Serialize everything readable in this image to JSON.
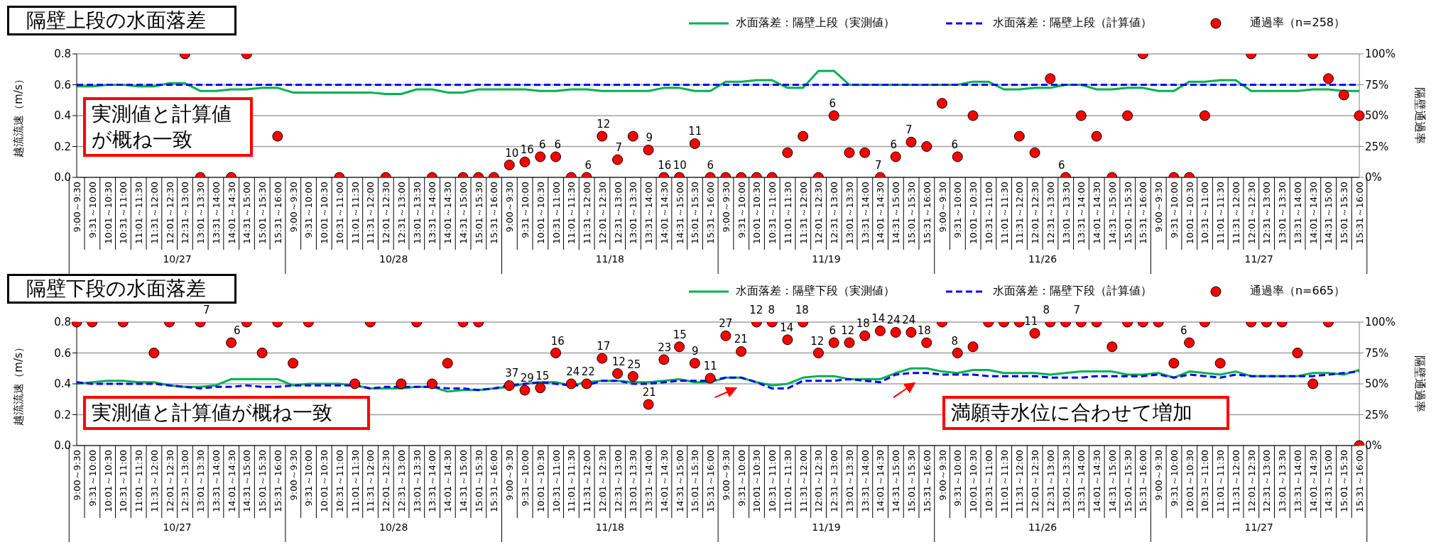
{
  "chart_data": [
    {
      "type": "line",
      "title": "隔壁上段の水面落差",
      "ylabel": "越流流速（m/s）",
      "y2label": "隔壁通過率",
      "legend": "top right",
      "grid": "y",
      "categories": [
        "9:00～9:30",
        "9:31～10:00",
        "10:01～10:30",
        "10:31～11:00",
        "11:01～11:30",
        "11:31～12:00",
        "12:01～12:30",
        "12:31～13:00",
        "13:01～13:30",
        "13:31～14:00",
        "14:01～14:30",
        "14:31～15:00",
        "15:01～15:30",
        "15:31～16:00",
        "9:00～9:30",
        "9:31～10:00",
        "10:01～10:30",
        "10:31～11:00",
        "11:01～11:30",
        "11:31～12:00",
        "12:01～12:30",
        "12:31～13:00",
        "13:01～13:30",
        "13:31～14:00",
        "14:01～14:30",
        "14:31～15:00",
        "15:01～15:30",
        "15:31～16:00",
        "9:00～9:30",
        "9:31～10:00",
        "10:01～10:30",
        "10:31～11:00",
        "11:01～11:30",
        "11:31～12:00",
        "12:01～12:30",
        "12:31～13:00",
        "13:01～13:30",
        "13:31～14:00",
        "14:01～14:30",
        "14:31～15:00",
        "15:01～15:30",
        "15:31～16:00",
        "9:00～9:30",
        "9:31～10:00",
        "10:01～10:30",
        "10:31～11:00",
        "11:01～11:30",
        "11:31～12:00",
        "12:01～12:30",
        "12:31～13:00",
        "13:01～13:30",
        "13:31～14:00",
        "14:01～14:30",
        "14:31～15:00",
        "15:01～15:30",
        "15:31～16:00",
        "9:00～9:30",
        "9:31～10:00",
        "10:01～10:30",
        "10:31～11:00",
        "11:01～11:30",
        "11:31～12:00",
        "12:01～12:30",
        "12:31～13:00",
        "13:01～13:30",
        "13:31～14:00",
        "14:01～14:30",
        "14:31～15:00",
        "15:01～15:30",
        "15:31～16:00",
        "9:00～9:30",
        "9:31～10:00",
        "10:01～10:30",
        "10:31～11:00",
        "11:01～11:30",
        "11:31～12:00",
        "12:01～12:30",
        "12:31～13:00",
        "13:01～13:30",
        "13:31～14:00",
        "14:01～14:30",
        "14:31～15:00",
        "15:01～15:30",
        "15:31～16:00"
      ],
      "ylim": [
        0,
        0.8
      ],
      "yticks": [
        {
          "value": 0,
          "label": "0.0"
        },
        0.2,
        0.4,
        0.6,
        0.8
      ],
      "y2lim": [
        0,
        100
      ],
      "y2ticks": [
        {
          "value": 0,
          "label": "0%"
        },
        {
          "value": 25,
          "label": "25%"
        },
        {
          "value": 50,
          "label": "50%"
        },
        {
          "value": 75,
          "label": "75%"
        },
        {
          "value": 100,
          "label": "100%"
        }
      ],
      "series": [
        {
          "name": "水面落差：隔壁上段（実測値）",
          "type": "line",
          "color": "#00b050",
          "marker": "none",
          "line_style": "solid",
          "values": [
            0.59,
            0.59,
            0.6,
            0.6,
            0.59,
            0.59,
            0.61,
            0.61,
            0.56,
            0.56,
            0.57,
            0.57,
            0.58,
            0.58,
            0.55,
            0.55,
            0.55,
            0.55,
            0.55,
            0.55,
            0.54,
            0.54,
            0.57,
            0.57,
            0.55,
            0.55,
            0.57,
            0.57,
            0.57,
            0.57,
            0.56,
            0.56,
            0.57,
            0.57,
            0.56,
            0.56,
            0.56,
            0.56,
            0.58,
            0.58,
            0.56,
            0.56,
            0.62,
            0.62,
            0.63,
            0.63,
            0.58,
            0.58,
            0.69,
            0.69,
            0.6,
            0.6,
            0.6,
            0.6,
            0.6,
            0.6,
            0.6,
            0.6,
            0.62,
            0.62,
            0.57,
            0.57,
            0.58,
            0.58,
            0.6,
            0.6,
            0.57,
            0.57,
            0.58,
            0.58,
            0.56,
            0.56,
            0.62,
            0.62,
            0.63,
            0.63,
            0.56,
            0.56,
            0.56,
            0.56,
            0.57,
            0.57,
            0.56,
            0.56
          ]
        },
        {
          "name": "水面落差：隔壁上段（計算値）",
          "type": "line",
          "color": "#0000ff",
          "marker": "none",
          "line_style": "dashed",
          "values": [
            0.6,
            0.6,
            0.6,
            0.6,
            0.6,
            0.6,
            0.6,
            0.6,
            0.6,
            0.6,
            0.6,
            0.6,
            0.6,
            0.6,
            0.6,
            0.6,
            0.6,
            0.6,
            0.6,
            0.6,
            0.6,
            0.6,
            0.6,
            0.6,
            0.6,
            0.6,
            0.6,
            0.6,
            0.6,
            0.6,
            0.6,
            0.6,
            0.6,
            0.6,
            0.6,
            0.6,
            0.6,
            0.6,
            0.6,
            0.6,
            0.6,
            0.6,
            0.6,
            0.6,
            0.6,
            0.6,
            0.6,
            0.6,
            0.6,
            0.6,
            0.6,
            0.6,
            0.6,
            0.6,
            0.6,
            0.6,
            0.6,
            0.6,
            0.6,
            0.6,
            0.6,
            0.6,
            0.6,
            0.6,
            0.6,
            0.6,
            0.6,
            0.6,
            0.6,
            0.6,
            0.6,
            0.6,
            0.6,
            0.6,
            0.6,
            0.6,
            0.6,
            0.6,
            0.6,
            0.6,
            0.6,
            0.6,
            0.6,
            0.6
          ]
        },
        {
          "name": "通過率（n=258）",
          "type": "scatter",
          "axis": "y2",
          "color": "#ff0000",
          "marker": "circle",
          "values": [
            null,
            null,
            null,
            null,
            null,
            null,
            null,
            100,
            0,
            null,
            0,
            100,
            null,
            33.3,
            null,
            null,
            null,
            0,
            null,
            null,
            0,
            null,
            null,
            0,
            null,
            0,
            0,
            0,
            10,
            12.5,
            16.7,
            16.7,
            0,
            0,
            33.3,
            14.3,
            33.3,
            22.2,
            0,
            0,
            27.3,
            0,
            0,
            0,
            0,
            0,
            20,
            33.3,
            0,
            50,
            20,
            20,
            0,
            16.7,
            28.6,
            25,
            60,
            16.7,
            50,
            null,
            null,
            33.3,
            20,
            80,
            0,
            50,
            33.3,
            0,
            50,
            100,
            null,
            0,
            0,
            50,
            null,
            null,
            100,
            null,
            null,
            null,
            100,
            80,
            66.7,
            50
          ]
        }
      ],
      "annotations": [
        "実測値と計算値が概ね一致",
        "10/27",
        "10/28",
        "11/18",
        "11/19",
        "11/26",
        "11/27",
        "10",
        "16",
        "6",
        "6",
        "6",
        "12",
        "7",
        "9",
        "16",
        "10",
        "11",
        "6",
        "6",
        "7",
        "6",
        "7",
        "6",
        "6"
      ]
    },
    {
      "type": "line",
      "title": "隔壁下段の水面落差",
      "ylabel": "越流流速（m/s）",
      "y2label": "隔壁通過率",
      "legend": "top right",
      "grid": "y",
      "categories": [
        "9:00～9:30",
        "9:31～10:00",
        "10:01～10:30",
        "10:31～11:00",
        "11:01～11:30",
        "11:31～12:00",
        "12:01～12:30",
        "12:31～13:00",
        "13:01～13:30",
        "13:31～14:00",
        "14:01～14:30",
        "14:31～15:00",
        "15:01～15:30",
        "15:31～16:00",
        "9:00～9:30",
        "9:31～10:00",
        "10:01～10:30",
        "10:31～11:00",
        "11:01～11:30",
        "11:31～12:00",
        "12:01～12:30",
        "12:31～13:00",
        "13:01～13:30",
        "13:31～14:00",
        "14:01～14:30",
        "14:31～15:00",
        "15:01～15:30",
        "15:31～16:00",
        "9:00～9:30",
        "9:31～10:00",
        "10:01～10:30",
        "10:31～11:00",
        "11:01～11:30",
        "11:31～12:00",
        "12:01～12:30",
        "12:31～13:00",
        "13:01～13:30",
        "13:31～14:00",
        "14:01～14:30",
        "14:31～15:00",
        "15:01～15:30",
        "15:31～16:00",
        "9:00～9:30",
        "9:31～10:00",
        "10:01～10:30",
        "10:31～11:00",
        "11:01～11:30",
        "11:31～12:00",
        "12:01～12:30",
        "12:31～13:00",
        "13:01～13:30",
        "13:31～14:00",
        "14:01～14:30",
        "14:31～15:00",
        "15:01～15:30",
        "15:31～16:00",
        "9:00～9:30",
        "9:31～10:00",
        "10:01～10:30",
        "10:31～11:00",
        "11:01～11:30",
        "11:31～12:00",
        "12:01～12:30",
        "12:31～13:00",
        "13:01～13:30",
        "13:31～14:00",
        "14:01～14:30",
        "14:31～15:00",
        "15:01～15:30",
        "15:31～16:00",
        "9:00～9:30",
        "9:31～10:00",
        "10:01～10:30",
        "10:31～11:00",
        "11:01～11:30",
        "11:31～12:00",
        "12:01～12:30",
        "12:31～13:00",
        "13:01～13:30",
        "13:31～14:00",
        "14:01～14:30",
        "14:31～15:00",
        "15:01～15:30",
        "15:31～16:00"
      ],
      "ylim": [
        0,
        0.8
      ],
      "yticks": [
        {
          "value": 0,
          "label": "0.0"
        },
        0.2,
        0.4,
        0.6,
        0.8
      ],
      "y2lim": [
        0,
        100
      ],
      "y2ticks": [
        {
          "value": 0,
          "label": "0%"
        },
        {
          "value": 25,
          "label": "25%"
        },
        {
          "value": 50,
          "label": "50%"
        },
        {
          "value": 75,
          "label": "75%"
        },
        {
          "value": 100,
          "label": "100%"
        }
      ],
      "series": [
        {
          "name": "水面落差：隔壁下段（実測値）",
          "type": "line",
          "color": "#00b050",
          "marker": "none",
          "line_style": "solid",
          "values": [
            0.4,
            0.41,
            0.42,
            0.42,
            0.41,
            0.41,
            0.39,
            0.38,
            0.38,
            0.39,
            0.43,
            0.43,
            0.43,
            0.43,
            0.39,
            0.4,
            0.4,
            0.4,
            0.39,
            0.37,
            0.37,
            0.37,
            0.38,
            0.38,
            0.35,
            0.36,
            0.36,
            0.37,
            0.38,
            0.4,
            0.41,
            0.41,
            0.39,
            0.41,
            0.42,
            0.42,
            0.41,
            0.41,
            0.42,
            0.43,
            0.41,
            0.41,
            0.44,
            0.44,
            0.41,
            0.39,
            0.4,
            0.44,
            0.45,
            0.45,
            0.43,
            0.43,
            0.43,
            0.47,
            0.5,
            0.5,
            0.48,
            0.47,
            0.49,
            0.49,
            0.47,
            0.47,
            0.47,
            0.46,
            0.47,
            0.48,
            0.48,
            0.48,
            0.46,
            0.46,
            0.47,
            0.44,
            0.48,
            0.47,
            0.46,
            0.48,
            0.45,
            0.45,
            0.45,
            0.45,
            0.47,
            0.47,
            0.46,
            0.49
          ]
        },
        {
          "name": "水面落差：隔壁下段（計算値）",
          "type": "line",
          "color": "#0000ff",
          "marker": "none",
          "line_style": "dashed",
          "values": [
            0.41,
            0.4,
            0.4,
            0.4,
            0.4,
            0.4,
            0.39,
            0.38,
            0.37,
            0.38,
            0.38,
            0.39,
            0.38,
            0.38,
            0.39,
            0.39,
            0.39,
            0.39,
            0.39,
            0.37,
            0.38,
            0.38,
            0.38,
            0.38,
            0.37,
            0.37,
            0.36,
            0.37,
            0.39,
            0.4,
            0.41,
            0.4,
            0.39,
            0.39,
            0.42,
            0.42,
            0.4,
            0.4,
            0.41,
            0.42,
            0.42,
            0.42,
            0.44,
            0.44,
            0.41,
            0.37,
            0.37,
            0.42,
            0.42,
            0.42,
            0.43,
            0.42,
            0.41,
            0.46,
            0.47,
            0.47,
            0.46,
            0.46,
            0.46,
            0.45,
            0.45,
            0.45,
            0.45,
            0.44,
            0.44,
            0.44,
            0.45,
            0.45,
            0.45,
            0.45,
            0.46,
            0.44,
            0.46,
            0.45,
            0.44,
            0.46,
            0.45,
            0.45,
            0.45,
            0.45,
            0.45,
            0.46,
            0.47,
            0.48
          ]
        },
        {
          "name": "通過率（n=665）",
          "type": "scatter",
          "axis": "y2",
          "color": "#ff0000",
          "marker": "circle",
          "values": [
            100,
            100,
            null,
            100,
            null,
            75,
            100,
            null,
            100,
            null,
            83.3,
            100,
            75,
            100,
            66.7,
            100,
            null,
            null,
            50,
            100,
            null,
            50,
            100,
            50,
            66.7,
            100,
            100,
            null,
            48.6,
            44.8,
            46.7,
            75,
            50,
            50,
            70.6,
            58.3,
            56,
            33.3,
            69.6,
            80,
            66.7,
            54.5,
            88.9,
            76.2,
            100,
            100,
            85.7,
            100,
            75,
            83.3,
            83.3,
            88.9,
            92.9,
            91.7,
            91.7,
            83.3,
            100,
            75,
            80,
            100,
            100,
            100,
            90.9,
            100,
            100,
            100,
            100,
            80,
            100,
            100,
            100,
            66.7,
            83.3,
            100,
            66.7,
            null,
            100,
            100,
            100,
            75,
            50,
            100,
            null,
            0
          ]
        }
      ],
      "annotations": [
        "実測値と計算値が概ね一致",
        "満願寺水位に合わせて増加",
        "10/27",
        "10/28",
        "11/18",
        "11/19",
        "11/26",
        "11/27",
        "7",
        "6",
        "37",
        "29",
        "15",
        "16",
        "24",
        "22",
        "17",
        "12",
        "25",
        "21",
        "23",
        "15",
        "9",
        "11",
        "27",
        "21",
        "12",
        "8",
        "14",
        "18",
        "12",
        "6",
        "12",
        "18",
        "14",
        "24",
        "24",
        "18",
        "8",
        "11",
        "8",
        "7",
        "6"
      ]
    }
  ]
}
